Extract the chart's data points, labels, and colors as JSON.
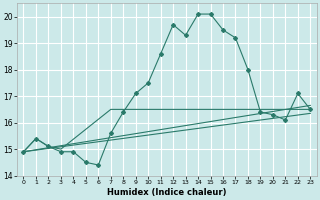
{
  "xlabel": "Humidex (Indice chaleur)",
  "xlim": [
    -0.5,
    23.5
  ],
  "ylim": [
    14,
    20.5
  ],
  "yticks": [
    14,
    15,
    16,
    17,
    18,
    19,
    20
  ],
  "xticks": [
    0,
    1,
    2,
    3,
    4,
    5,
    6,
    7,
    8,
    9,
    10,
    11,
    12,
    13,
    14,
    15,
    16,
    17,
    18,
    19,
    20,
    21,
    22,
    23
  ],
  "background_color": "#cce9e9",
  "grid_color": "#ffffff",
  "line_color": "#2a7a6a",
  "series": [
    [
      0,
      14.9
    ],
    [
      1,
      15.4
    ],
    [
      2,
      15.1
    ],
    [
      3,
      14.9
    ],
    [
      4,
      14.9
    ],
    [
      5,
      14.5
    ],
    [
      6,
      14.4
    ],
    [
      7,
      15.6
    ],
    [
      8,
      16.4
    ],
    [
      9,
      17.1
    ],
    [
      10,
      17.5
    ],
    [
      11,
      18.6
    ],
    [
      12,
      19.7
    ],
    [
      13,
      19.3
    ],
    [
      14,
      20.1
    ],
    [
      15,
      20.1
    ],
    [
      16,
      19.5
    ],
    [
      17,
      19.2
    ],
    [
      18,
      18.0
    ],
    [
      19,
      16.4
    ],
    [
      20,
      16.3
    ],
    [
      21,
      16.1
    ],
    [
      22,
      17.1
    ],
    [
      23,
      16.5
    ]
  ],
  "line2": [
    [
      0,
      14.9
    ],
    [
      1,
      15.4
    ],
    [
      2,
      15.1
    ],
    [
      3,
      15.0
    ],
    [
      7,
      16.5
    ],
    [
      23,
      16.5
    ]
  ],
  "line3": [
    [
      0,
      14.9
    ],
    [
      23,
      16.65
    ]
  ],
  "line4": [
    [
      0,
      14.9
    ],
    [
      23,
      16.35
    ]
  ]
}
